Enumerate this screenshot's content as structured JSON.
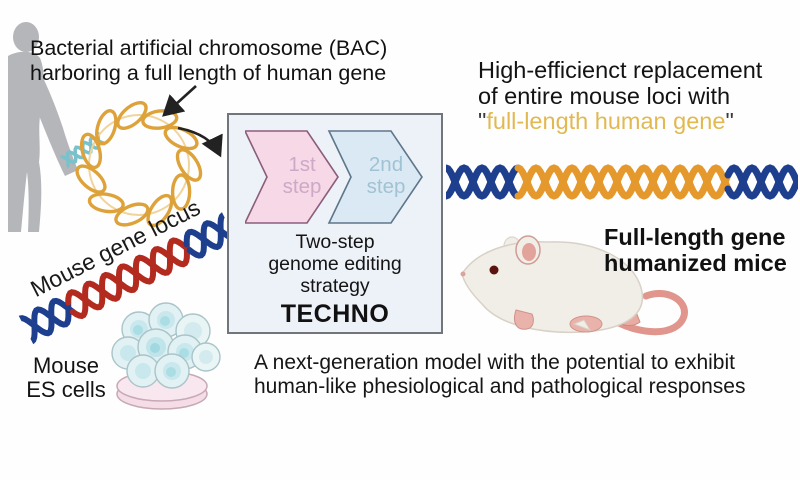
{
  "bac": {
    "label": "Bacterial artificial chromosome (BAC)\nharboring a full length of human gene"
  },
  "workflow": {
    "step1": "1st\nstep",
    "step2": "2nd\nstep",
    "caption": "Two-step\ngenome editing\nstrategy",
    "brand": "TECHNO"
  },
  "mouse_locus_label": "Mouse gene locus",
  "es_cells_label": "Mouse\nES cells",
  "headline": {
    "line1": "High-efficienct replacement",
    "line2": "of entire mouse loci with",
    "quote_open": "\"",
    "highlight": "full-length human gene",
    "quote_close": "\""
  },
  "result_label": "Full-length gene\nhumanized mice",
  "footnote": "A next-generation model with the potential to exhibit\nhuman-like phesiological and pathological responses",
  "colors": {
    "bac_orange": "#dda23a",
    "dna_blue": "#1e3e8e",
    "dna_red": "#b32a1f",
    "dna_orange": "#e5992d",
    "highlight_gold": "#e2b851",
    "step1_pink_fill": "#f6d8e7",
    "step1_pink_border": "#8b5d7b",
    "step2_blue_fill": "#dbe9f4",
    "step2_blue_border": "#5e7689",
    "box_bg": "#edf1f8",
    "box_border": "#71767d",
    "silhouette_gray": "#b4b6b9"
  }
}
